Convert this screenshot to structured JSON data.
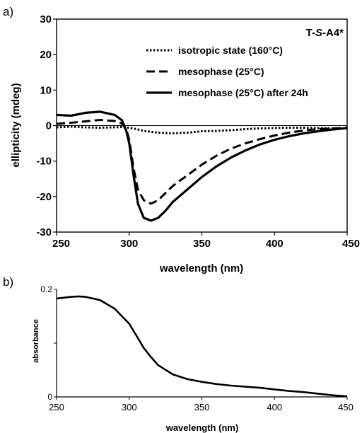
{
  "chart_data": [
    {
      "panel_label": "a)",
      "type": "line",
      "title": "",
      "annotation": {
        "prefix": "T-",
        "italic": "S",
        "suffix": "-A4*"
      },
      "xlabel": "wavelength (nm)",
      "ylabel": "ellipticity (mdeg)",
      "xlim": [
        250,
        450
      ],
      "ylim": [
        -30,
        30
      ],
      "x_ticks": [
        250,
        300,
        350,
        400,
        450
      ],
      "y_ticks": [
        -30,
        -20,
        -10,
        0,
        10,
        20,
        30
      ],
      "x_tick_labels": [
        "250",
        "300",
        "350",
        "400",
        "450"
      ],
      "y_tick_labels": [
        "-30",
        "-20",
        "-10",
        "0",
        "10",
        "20",
        "30"
      ],
      "zero_line": true,
      "legend_position": "top-right",
      "series": [
        {
          "name": "isotropic state (160°C)",
          "style": "dotted",
          "x": [
            250,
            260,
            270,
            280,
            290,
            295,
            300,
            305,
            310,
            320,
            330,
            340,
            350,
            360,
            370,
            380,
            390,
            400,
            410,
            420,
            430,
            440,
            450
          ],
          "y": [
            -0.5,
            -0.3,
            -0.5,
            -0.6,
            -0.5,
            -0.4,
            -0.6,
            -1.0,
            -1.5,
            -2.0,
            -2.2,
            -2.0,
            -1.6,
            -1.5,
            -1.3,
            -1.0,
            -0.8,
            -0.7,
            -0.6,
            -0.6,
            -0.7,
            -0.8,
            -0.8
          ]
        },
        {
          "name": "mesophase (25°C)",
          "style": "dashed",
          "x": [
            250,
            260,
            270,
            280,
            290,
            295,
            298,
            300,
            303,
            306,
            310,
            315,
            320,
            325,
            330,
            340,
            350,
            360,
            370,
            380,
            390,
            400,
            410,
            420,
            430,
            440,
            450
          ],
          "y": [
            0.5,
            0.8,
            1.2,
            1.6,
            1.3,
            0.6,
            -1.0,
            -4.0,
            -12.0,
            -18.0,
            -21.0,
            -22.0,
            -21.0,
            -19.0,
            -17.0,
            -14.0,
            -11.0,
            -8.5,
            -6.5,
            -5.0,
            -3.8,
            -2.8,
            -2.0,
            -1.4,
            -1.0,
            -0.8,
            -0.6
          ]
        },
        {
          "name": "mesophase (25°C) after 24h",
          "style": "solid",
          "x": [
            250,
            260,
            270,
            280,
            290,
            295,
            298,
            300,
            303,
            306,
            310,
            315,
            320,
            325,
            330,
            340,
            350,
            360,
            370,
            380,
            390,
            400,
            410,
            420,
            430,
            440,
            450
          ],
          "y": [
            3.0,
            2.8,
            3.6,
            3.9,
            3.0,
            1.5,
            -1.5,
            -5.0,
            -14.0,
            -22.0,
            -26.0,
            -26.8,
            -26.0,
            -24.0,
            -21.5,
            -18.0,
            -14.5,
            -11.5,
            -9.0,
            -7.0,
            -5.3,
            -4.0,
            -3.0,
            -2.2,
            -1.6,
            -1.1,
            -0.7
          ]
        }
      ]
    },
    {
      "panel_label": "b)",
      "type": "line",
      "title": "",
      "xlabel": "wavelength (nm)",
      "ylabel": "absorbance",
      "xlim": [
        250,
        450
      ],
      "ylim": [
        0,
        0.2
      ],
      "x_ticks": [
        250,
        300,
        350,
        400,
        450
      ],
      "y_ticks": [
        0,
        0.2
      ],
      "x_tick_labels": [
        "250",
        "300",
        "350",
        "400",
        "450"
      ],
      "y_tick_labels": [
        "0",
        "0.2"
      ],
      "series": [
        {
          "style": "solid",
          "x": [
            250,
            260,
            265,
            270,
            280,
            290,
            300,
            305,
            310,
            315,
            320,
            330,
            340,
            350,
            360,
            370,
            380,
            390,
            400,
            410,
            420,
            430,
            440,
            450
          ],
          "y": [
            0.183,
            0.186,
            0.187,
            0.186,
            0.18,
            0.164,
            0.136,
            0.114,
            0.091,
            0.074,
            0.059,
            0.042,
            0.033,
            0.028,
            0.024,
            0.021,
            0.019,
            0.017,
            0.014,
            0.011,
            0.009,
            0.006,
            0.003,
            0.001
          ]
        }
      ]
    }
  ]
}
